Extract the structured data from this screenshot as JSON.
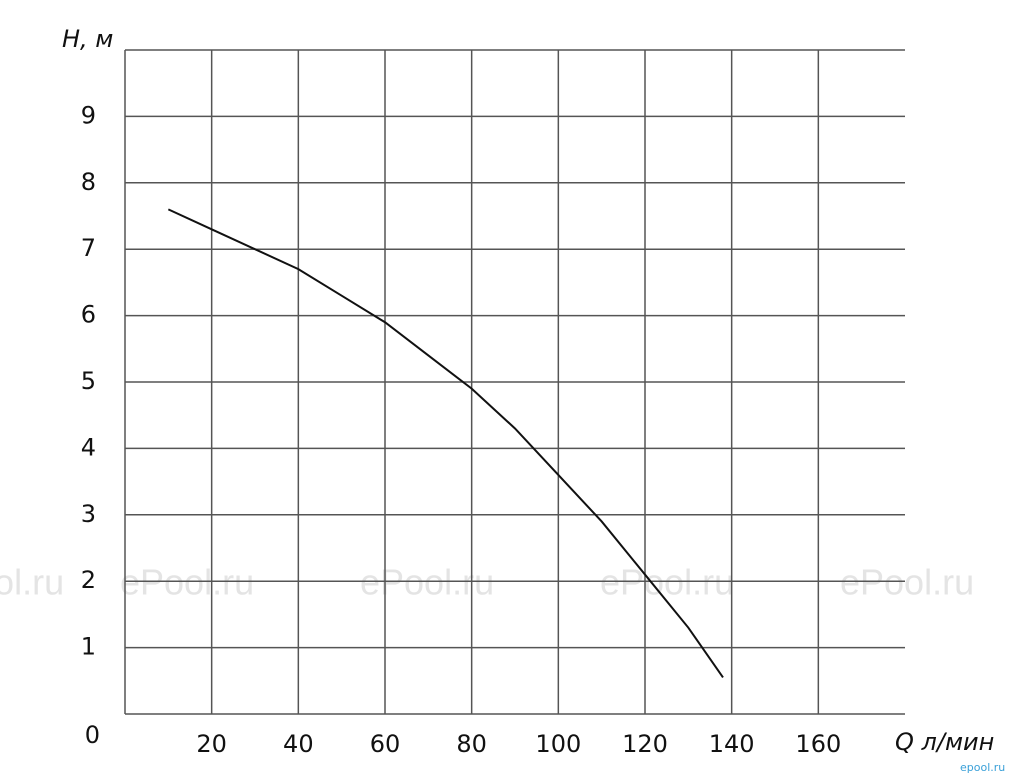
{
  "chart_data": {
    "type": "line",
    "y_label": "H, м",
    "x_label": "Q л/мин",
    "x": [
      10,
      20,
      30,
      40,
      50,
      60,
      70,
      80,
      90,
      100,
      110,
      120,
      130,
      138
    ],
    "series": [
      {
        "name": "H",
        "color": "#111111",
        "values": [
          7.6,
          7.3,
          7.0,
          6.7,
          6.3,
          5.9,
          5.4,
          4.9,
          4.3,
          3.6,
          2.9,
          2.1,
          1.3,
          0.55
        ]
      }
    ],
    "xlim": [
      0,
      180
    ],
    "ylim": [
      0,
      10
    ],
    "xticks": [
      20,
      40,
      60,
      80,
      100,
      120,
      140,
      160
    ],
    "yticks": [
      0,
      1,
      2,
      3,
      4,
      5,
      6,
      7,
      8,
      9
    ],
    "grid": true,
    "watermark": "ePool.ru",
    "corner_mark": "epool.ru"
  }
}
